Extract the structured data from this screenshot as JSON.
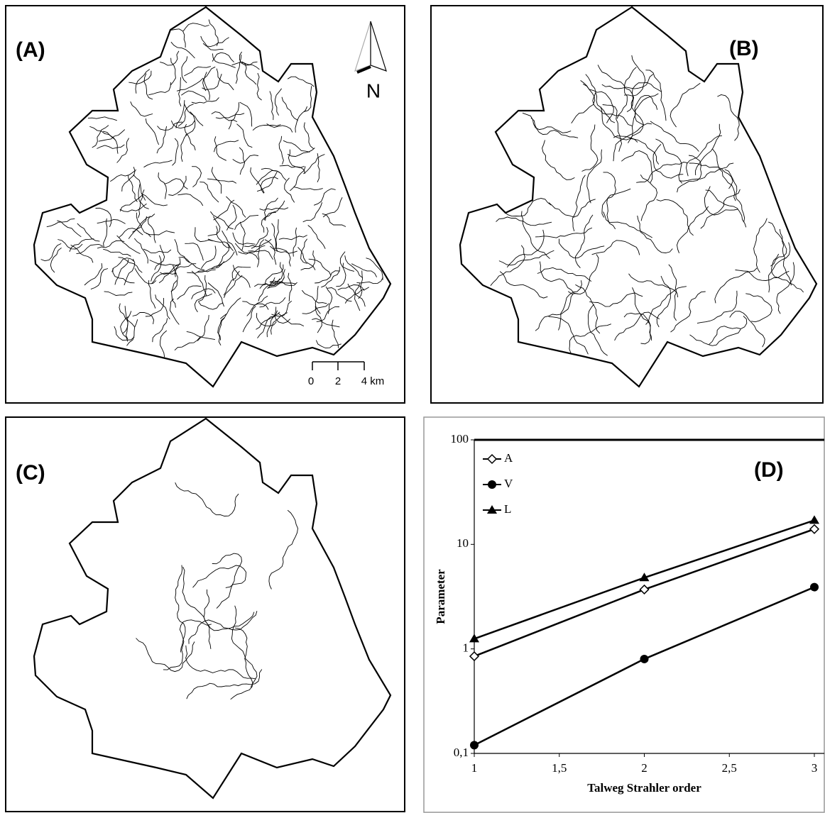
{
  "maps": [
    {
      "label": "(A)"
    },
    {
      "label": "(B)"
    },
    {
      "label": "(C)"
    }
  ],
  "north_arrow": "N",
  "scale_bar": [
    "0",
    "2",
    "4 km"
  ],
  "chart_data": {
    "type": "line",
    "title": "(D)",
    "x_label": "Talweg Strahler order",
    "y_label": "Parameter",
    "x": [
      1,
      2,
      3
    ],
    "xlim": [
      1,
      3
    ],
    "xticks": [
      1,
      {
        "value": 1.5,
        "label": "1,5"
      },
      2,
      {
        "value": 2.5,
        "label": "2,5"
      },
      3
    ],
    "ylim": [
      0.1,
      100
    ],
    "log_y": true,
    "yticks": [
      {
        "value": 0.1,
        "label": "0,1"
      },
      1,
      10,
      100
    ],
    "legend": "top-left",
    "series": [
      {
        "name": "A",
        "color": "#000000",
        "marker": "diamond-open",
        "values": [
          0.85,
          3.7,
          14
        ]
      },
      {
        "name": "V",
        "color": "#000000",
        "marker": "circle",
        "values": [
          0.12,
          0.8,
          3.9
        ]
      },
      {
        "name": "L",
        "color": "#000000",
        "marker": "triangle",
        "values": [
          1.25,
          4.8,
          17
        ]
      }
    ]
  }
}
